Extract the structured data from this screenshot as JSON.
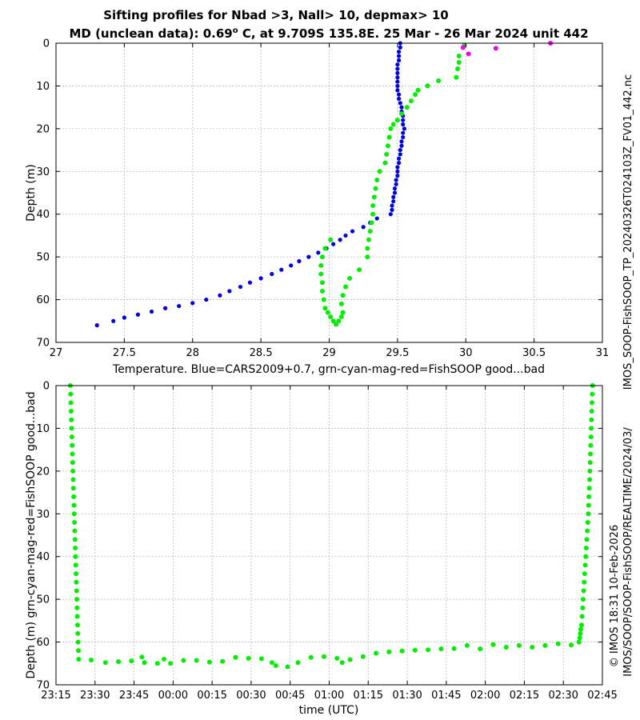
{
  "chart_data": [
    {
      "type": "scatter",
      "title": "Sifting profiles for Nbad >3, Nall> 10, depmax> 10",
      "subtitle_parts": {
        "pre": "MD (unclean data): 0.69",
        "deg": "o",
        "post": " C, at 9.709S 135.8E. 25 Mar - 26 Mar 2024 unit 442"
      },
      "xlabel": "Temperature. Blue=CARS2009+0.7, grn-cyan-mag-red=FishSOOP good...bad",
      "ylabel": "Depth (m)",
      "xlim": [
        27,
        31
      ],
      "ylim": [
        70,
        0
      ],
      "y_inverted": true,
      "xticks": [
        "27",
        "27.5",
        "28",
        "28.5",
        "29",
        "29.5",
        "30",
        "30.5",
        "31"
      ],
      "yticks": [
        "0",
        "10",
        "20",
        "30",
        "40",
        "50",
        "60",
        "70"
      ],
      "grid": true,
      "series": [
        {
          "color": "#0000dd",
          "points": [
            [
              29.52,
              0
            ],
            [
              29.52,
              1
            ],
            [
              29.51,
              2
            ],
            [
              29.51,
              3
            ],
            [
              29.51,
              4
            ],
            [
              29.5,
              5
            ],
            [
              29.5,
              6
            ],
            [
              29.5,
              7
            ],
            [
              29.5,
              8
            ],
            [
              29.5,
              9
            ],
            [
              29.5,
              10
            ],
            [
              29.5,
              11
            ],
            [
              29.51,
              12
            ],
            [
              29.51,
              13
            ],
            [
              29.52,
              14
            ],
            [
              29.53,
              15
            ],
            [
              29.53,
              16
            ],
            [
              29.54,
              17
            ],
            [
              29.54,
              18
            ],
            [
              29.54,
              19
            ],
            [
              29.55,
              20
            ],
            [
              29.54,
              21
            ],
            [
              29.54,
              22
            ],
            [
              29.53,
              23
            ],
            [
              29.53,
              24
            ],
            [
              29.52,
              25
            ],
            [
              29.52,
              26
            ],
            [
              29.51,
              27
            ],
            [
              29.51,
              28
            ],
            [
              29.5,
              29
            ],
            [
              29.5,
              30
            ],
            [
              29.5,
              31
            ],
            [
              29.49,
              32
            ],
            [
              29.49,
              33
            ],
            [
              29.48,
              34
            ],
            [
              29.48,
              35
            ],
            [
              29.47,
              36
            ],
            [
              29.47,
              37
            ],
            [
              29.46,
              38
            ],
            [
              29.46,
              39
            ],
            [
              29.45,
              40
            ],
            [
              29.35,
              41
            ],
            [
              29.3,
              42
            ],
            [
              29.25,
              43
            ],
            [
              29.17,
              44
            ],
            [
              29.12,
              45
            ],
            [
              29.08,
              46
            ],
            [
              29.03,
              47
            ],
            [
              28.98,
              48
            ],
            [
              28.92,
              49
            ],
            [
              28.85,
              50
            ],
            [
              28.78,
              51
            ],
            [
              28.72,
              52
            ],
            [
              28.65,
              53
            ],
            [
              28.58,
              54
            ],
            [
              28.5,
              55
            ],
            [
              28.42,
              56
            ],
            [
              28.35,
              57
            ],
            [
              28.27,
              58
            ],
            [
              28.2,
              59
            ],
            [
              28.1,
              60
            ],
            [
              28.0,
              60.8
            ],
            [
              27.9,
              61.5
            ],
            [
              27.8,
              62
            ],
            [
              27.7,
              62.8
            ],
            [
              27.6,
              63.5
            ],
            [
              27.5,
              64.2
            ],
            [
              27.42,
              65
            ],
            [
              27.3,
              66
            ]
          ]
        },
        {
          "color": "#00ee00",
          "points": [
            [
              29.99,
              0.5
            ],
            [
              29.95,
              3
            ],
            [
              29.95,
              4.5
            ],
            [
              29.94,
              6
            ],
            [
              29.93,
              8
            ],
            [
              29.8,
              8.8
            ],
            [
              29.72,
              10
            ],
            [
              29.65,
              11
            ],
            [
              29.63,
              12
            ],
            [
              29.6,
              13.5
            ],
            [
              29.57,
              15
            ],
            [
              29.53,
              16.5
            ],
            [
              29.5,
              18
            ],
            [
              29.47,
              19
            ],
            [
              29.45,
              20
            ],
            [
              29.44,
              22
            ],
            [
              29.43,
              24
            ],
            [
              29.42,
              26
            ],
            [
              29.41,
              28
            ],
            [
              29.37,
              30
            ],
            [
              29.35,
              32
            ],
            [
              29.34,
              34
            ],
            [
              29.33,
              36
            ],
            [
              29.32,
              38
            ],
            [
              29.32,
              40
            ],
            [
              29.31,
              42
            ],
            [
              29.3,
              44
            ],
            [
              29.29,
              46
            ],
            [
              29.28,
              48
            ],
            [
              29.28,
              50
            ],
            [
              29.22,
              53
            ],
            [
              29.15,
              55
            ],
            [
              29.12,
              57
            ],
            [
              29.1,
              59
            ],
            [
              29.09,
              61
            ],
            [
              29.1,
              63
            ],
            [
              29.09,
              64
            ],
            [
              29.07,
              65
            ],
            [
              29.05,
              65.8
            ],
            [
              29.03,
              65
            ],
            [
              29.01,
              64
            ],
            [
              28.99,
              63
            ],
            [
              28.97,
              62
            ],
            [
              28.96,
              60
            ],
            [
              28.95,
              58
            ],
            [
              28.95,
              56
            ],
            [
              28.94,
              54
            ],
            [
              28.94,
              52
            ],
            [
              28.95,
              50
            ],
            [
              28.97,
              48
            ],
            [
              29.01,
              46
            ]
          ]
        },
        {
          "color": "#ee00ee",
          "points": [
            [
              29.98,
              1
            ],
            [
              30.02,
              2.5
            ],
            [
              30.22,
              1.2
            ],
            [
              30.62,
              0
            ]
          ]
        }
      ]
    },
    {
      "type": "scatter",
      "xlabel": "time (UTC)",
      "ylabel": "Depth (m) grn-cyan-mag-red=FishSOOP good...bad",
      "xlim_minutes": [
        1395,
        1605
      ],
      "ylim": [
        70,
        0
      ],
      "y_inverted": true,
      "xticks": [
        "23:15",
        "23:30",
        "23:45",
        "00:00",
        "00:15",
        "00:30",
        "00:45",
        "01:00",
        "01:15",
        "01:30",
        "01:45",
        "02:00",
        "02:15",
        "02:30",
        "02:45"
      ],
      "yticks": [
        "0",
        "10",
        "20",
        "30",
        "40",
        "50",
        "60",
        "70"
      ],
      "grid": true,
      "series": [
        {
          "color": "#00ee00",
          "points_minutes": [
            [
              1400.5,
              0
            ],
            [
              1400.6,
              2
            ],
            [
              1400.7,
              4
            ],
            [
              1400.8,
              6
            ],
            [
              1400.9,
              8
            ],
            [
              1401.0,
              10
            ],
            [
              1401.1,
              12
            ],
            [
              1401.2,
              14
            ],
            [
              1401.3,
              16
            ],
            [
              1401.4,
              18
            ],
            [
              1401.5,
              20
            ],
            [
              1401.6,
              22
            ],
            [
              1401.7,
              24
            ],
            [
              1401.8,
              26
            ],
            [
              1401.9,
              28
            ],
            [
              1402.0,
              30
            ],
            [
              1402.1,
              32
            ],
            [
              1402.2,
              34
            ],
            [
              1402.3,
              36
            ],
            [
              1402.4,
              38
            ],
            [
              1402.5,
              40
            ],
            [
              1402.6,
              42
            ],
            [
              1402.7,
              44
            ],
            [
              1402.8,
              46
            ],
            [
              1402.9,
              48
            ],
            [
              1403.0,
              50
            ],
            [
              1403.1,
              52
            ],
            [
              1403.2,
              54
            ],
            [
              1403.3,
              56
            ],
            [
              1403.4,
              58
            ],
            [
              1403.5,
              60
            ],
            [
              1403.6,
              62
            ],
            [
              1403.7,
              64
            ],
            [
              1408.5,
              64.2
            ],
            [
              1414,
              64.8
            ],
            [
              1419,
              64.6
            ],
            [
              1424,
              64.4
            ],
            [
              1428,
              63.5
            ],
            [
              1429,
              64.8
            ],
            [
              1434,
              65
            ],
            [
              1436.5,
              64
            ],
            [
              1439,
              65
            ],
            [
              1444,
              64.3
            ],
            [
              1449,
              64.3
            ],
            [
              1454,
              64.7
            ],
            [
              1459,
              64.5
            ],
            [
              1464,
              63.6
            ],
            [
              1469,
              63.8
            ],
            [
              1474,
              63.9
            ],
            [
              1478,
              64.8
            ],
            [
              1479.5,
              65.5
            ],
            [
              1484,
              65.8
            ],
            [
              1488,
              64.8
            ],
            [
              1493,
              63.6
            ],
            [
              1498,
              63.4
            ],
            [
              1503,
              63.8
            ],
            [
              1505,
              64.8
            ],
            [
              1508,
              64.1
            ],
            [
              1513,
              63.4
            ],
            [
              1518,
              62.6
            ],
            [
              1523,
              62.3
            ],
            [
              1528,
              62.1
            ],
            [
              1533,
              61.9
            ],
            [
              1538,
              61.8
            ],
            [
              1543,
              61.6
            ],
            [
              1548,
              61.5
            ],
            [
              1553,
              60.8
            ],
            [
              1558,
              61.6
            ],
            [
              1563,
              60.6
            ],
            [
              1568,
              61.2
            ],
            [
              1573,
              60.8
            ],
            [
              1578,
              61.2
            ],
            [
              1583,
              60.8
            ],
            [
              1588,
              60.4
            ],
            [
              1593,
              60.7
            ],
            [
              1596,
              60
            ],
            [
              1596.3,
              59
            ],
            [
              1596.5,
              58
            ],
            [
              1596.7,
              57
            ],
            [
              1597,
              56
            ],
            [
              1597.2,
              54
            ],
            [
              1597.4,
              52
            ],
            [
              1597.6,
              50
            ],
            [
              1597.8,
              48
            ],
            [
              1598,
              46
            ],
            [
              1598.2,
              44
            ],
            [
              1598.4,
              42
            ],
            [
              1598.6,
              40
            ],
            [
              1598.8,
              38
            ],
            [
              1599,
              36
            ],
            [
              1599.2,
              34
            ],
            [
              1599.4,
              32
            ],
            [
              1599.6,
              30
            ],
            [
              1599.7,
              28
            ],
            [
              1599.8,
              26
            ],
            [
              1600,
              24
            ],
            [
              1600.1,
              22
            ],
            [
              1600.2,
              20
            ],
            [
              1600.3,
              18
            ],
            [
              1600.4,
              16
            ],
            [
              1600.5,
              14
            ],
            [
              1600.6,
              12
            ],
            [
              1600.7,
              10
            ],
            [
              1600.8,
              8
            ],
            [
              1600.9,
              6
            ],
            [
              1601,
              4
            ],
            [
              1601.1,
              2
            ],
            [
              1601.2,
              0
            ]
          ]
        }
      ]
    }
  ],
  "side_labels": {
    "right_top": "IMOS_SOOP-FishSOOP_TP_20240326T024103Z_FV01_442.nc",
    "right_bottom_1": "IMOS/SOOP/SOOP-FishSOOP/REALTIME/2024/03/",
    "right_bottom_2": "© IMOS 18:31 10-Feb-2026"
  }
}
